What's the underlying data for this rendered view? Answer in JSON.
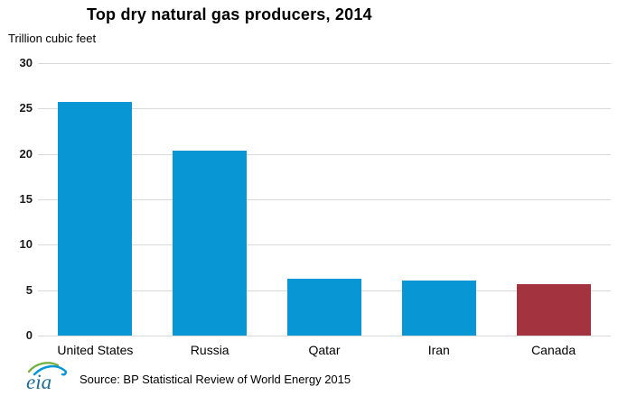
{
  "chart": {
    "title": "Top dry natural gas producers, 2014",
    "units_label": "Trillion cubic feet",
    "source": "Source: BP Statistical Review of World Energy 2015",
    "logo_text": "eia"
  },
  "chart_data": {
    "type": "bar",
    "title": "Top dry natural gas producers, 2014",
    "xlabel": "",
    "ylabel": "Trillion cubic feet",
    "categories": [
      "United States",
      "Russia",
      "Qatar",
      "Iran",
      "Canada"
    ],
    "values": [
      25.7,
      20.4,
      6.3,
      6.1,
      5.7
    ],
    "bar_colors": [
      "#0996d5",
      "#0996d5",
      "#0996d5",
      "#0996d5",
      "#a3333f"
    ],
    "ylim": [
      0,
      30
    ],
    "yticks": [
      0,
      5,
      10,
      15,
      20,
      25,
      30
    ],
    "grid": true,
    "legend": false,
    "source": "Source: BP Statistical Review of World Energy 2015"
  },
  "colors": {
    "bar_blue": "#0996d5",
    "bar_red": "#a3333f",
    "gridline": "#d9d9d9",
    "text": "#000000",
    "logo_green": "#76b043",
    "logo_blue": "#0096d7",
    "logo_text_color": "#1d6d94"
  }
}
